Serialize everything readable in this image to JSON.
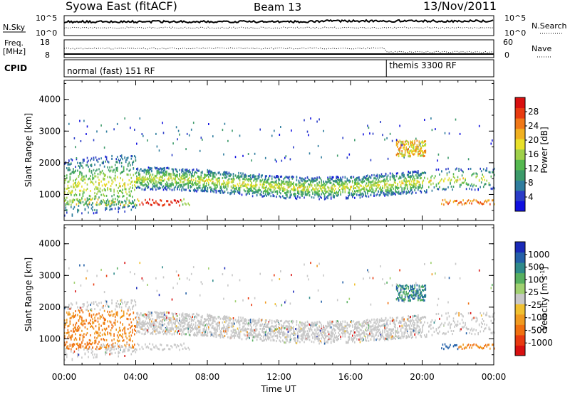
{
  "header": {
    "station": "Syowa East (fitACF)",
    "beam": "Beam 13",
    "date": "13/Nov/2011"
  },
  "panels": {
    "sky": {
      "left_label": "N.Sky",
      "right_label": "N.Search",
      "tick_top": "10^5",
      "tick_bottom": "10^0"
    },
    "freq": {
      "left_label_1": "Freq.",
      "left_label_2": "[MHz]",
      "right_label": "Nave",
      "left_tick_top": "18",
      "left_tick_bottom": "8",
      "right_tick_top": "60",
      "right_tick_bottom": "0"
    },
    "cpid": {
      "label": "CPID",
      "mode1": "normal (fast) 151 RF",
      "mode2": "themis 3300 RF",
      "mode2_start_hour": 18.0
    }
  },
  "chart_data": [
    {
      "type": "heatmap",
      "name": "power",
      "ylabel": "Slant Range [km]",
      "xlabel": "",
      "xlim": [
        0,
        24
      ],
      "ylim": [
        180,
        4600
      ],
      "yticks": [
        "1000",
        "2000",
        "3000",
        "4000"
      ],
      "colorbar": {
        "label": "Power [dB]",
        "ticks": [
          "4",
          "8",
          "12",
          "16",
          "20",
          "24",
          "28"
        ],
        "range": [
          0,
          32
        ],
        "colors": [
          "#1010e0",
          "#2a3cc8",
          "#2f7d9e",
          "#3c9a6a",
          "#55b850",
          "#9fd04a",
          "#e8e02a",
          "#f0b020",
          "#f07818",
          "#e83a10",
          "#d81010"
        ]
      }
    },
    {
      "type": "heatmap",
      "name": "velocity",
      "ylabel": "Slant Range [km]",
      "xlabel": "Time UT",
      "xlim": [
        0,
        24
      ],
      "ylim": [
        180,
        4600
      ],
      "yticks": [
        "1000",
        "2000",
        "3000",
        "4000"
      ],
      "xticks": [
        "00:00",
        "04:00",
        "08:00",
        "12:00",
        "16:00",
        "20:00",
        "00:00"
      ],
      "colorbar": {
        "label": "Velocity [m s^-1]",
        "ticks": [
          "1000",
          "500",
          "100",
          "25",
          "-25",
          "-100",
          "-500",
          "-1000"
        ],
        "colors": [
          "#1a2ab8",
          "#2460a8",
          "#2f8a8a",
          "#58b060",
          "#a0d070",
          "#c8c8c8",
          "#f0c030",
          "#f09a20",
          "#f07010",
          "#e83a10",
          "#d81010"
        ]
      }
    }
  ]
}
